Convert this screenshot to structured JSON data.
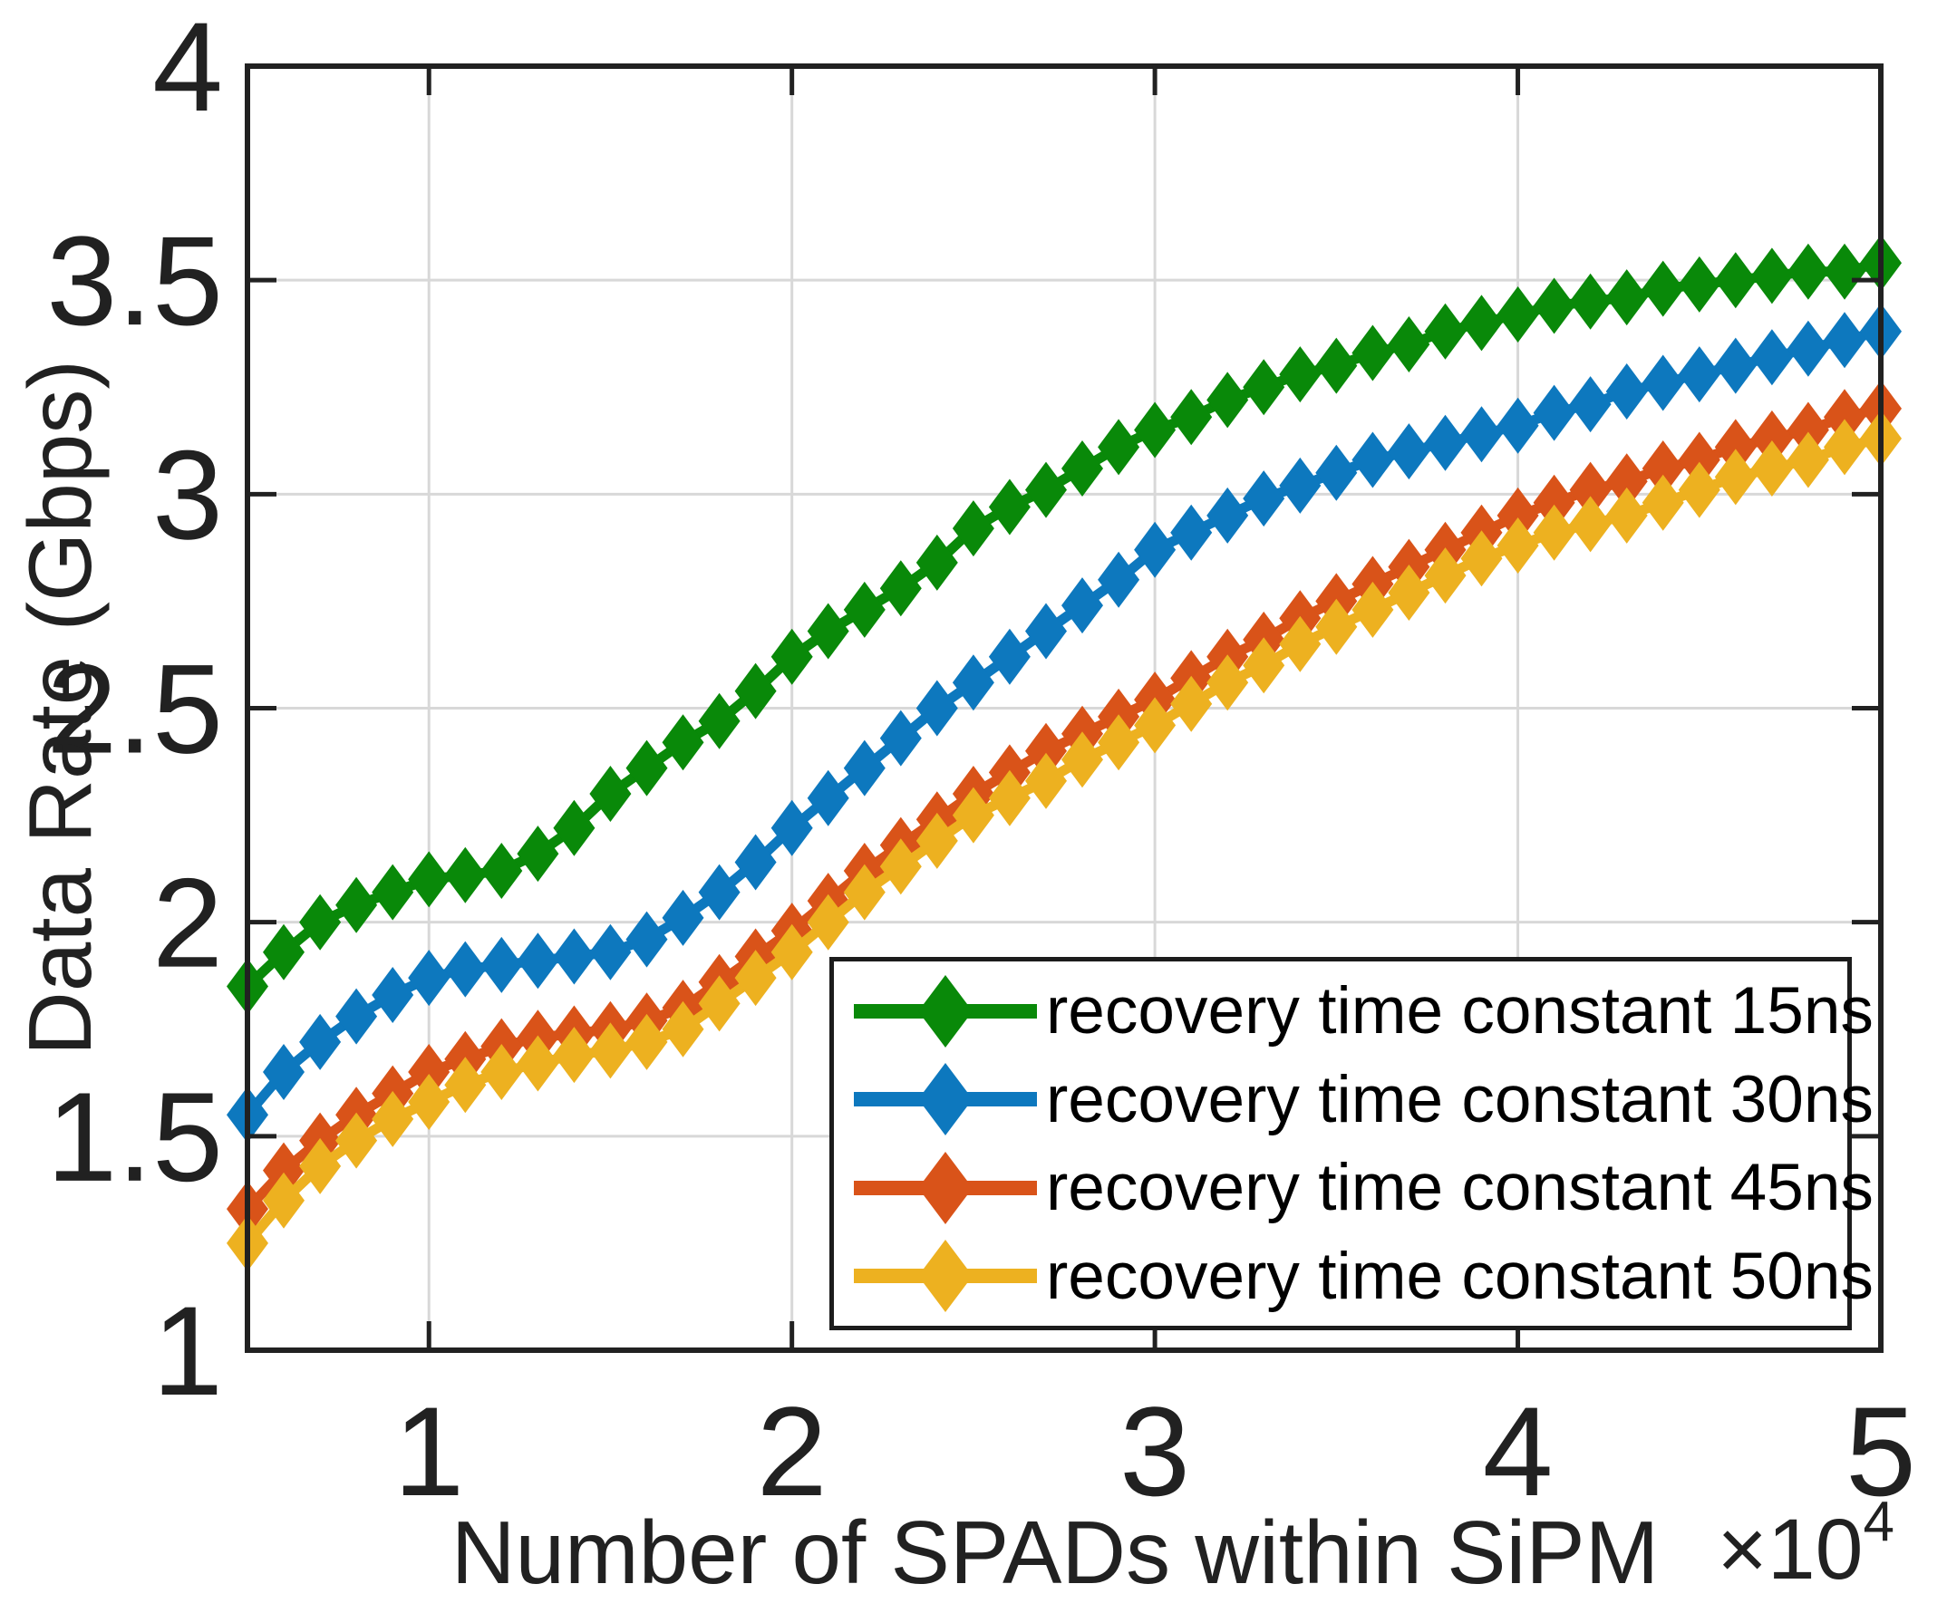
{
  "figure": {
    "background": "#ffffff",
    "axis_color": "#212121",
    "grid_color": "#d8d8d8",
    "text_color": "#212121"
  },
  "chart_data": {
    "type": "line",
    "title": "",
    "xlabel": "Number of SPADs within SiPM",
    "ylabel": "Data Rate (Gbps)",
    "x_axis_multiplier_base": "×10",
    "x_axis_multiplier_exponent": "4",
    "xlim": [
      5000,
      50000
    ],
    "ylim": [
      1,
      4
    ],
    "grid": true,
    "legend_position": "inside lower right",
    "x_ticks": {
      "values": [
        10000,
        20000,
        30000,
        40000,
        50000
      ],
      "labels": [
        "1",
        "2",
        "3",
        "4",
        "5"
      ]
    },
    "y_ticks": {
      "values": [
        1,
        1.5,
        2,
        2.5,
        3,
        3.5,
        4
      ],
      "labels": [
        "1",
        "1.5",
        "2",
        "2.5",
        "3",
        "3.5",
        "4"
      ]
    },
    "x": [
      5000,
      6000,
      7000,
      8000,
      9000,
      10000,
      11000,
      12000,
      13000,
      14000,
      15000,
      16000,
      17000,
      18000,
      19000,
      20000,
      21000,
      22000,
      23000,
      24000,
      25000,
      26000,
      27000,
      28000,
      29000,
      30000,
      31000,
      32000,
      33000,
      34000,
      35000,
      36000,
      37000,
      38000,
      39000,
      40000,
      41000,
      42000,
      43000,
      44000,
      45000,
      46000,
      47000,
      48000,
      49000,
      50000
    ],
    "series": [
      {
        "name": "recovery time constant 15ns",
        "color": "#098909",
        "marker": "diamond",
        "values": [
          1.85,
          1.93,
          2.0,
          2.04,
          2.07,
          2.1,
          2.11,
          2.12,
          2.16,
          2.22,
          2.3,
          2.36,
          2.42,
          2.47,
          2.54,
          2.62,
          2.68,
          2.73,
          2.78,
          2.84,
          2.92,
          2.97,
          3.01,
          3.06,
          3.11,
          3.15,
          3.18,
          3.22,
          3.25,
          3.28,
          3.3,
          3.33,
          3.35,
          3.38,
          3.4,
          3.42,
          3.44,
          3.45,
          3.46,
          3.48,
          3.49,
          3.5,
          3.51,
          3.52,
          3.52,
          3.54
        ]
      },
      {
        "name": "recovery time constant 30ns",
        "color": "#0d78be",
        "marker": "diamond",
        "values": [
          1.55,
          1.65,
          1.72,
          1.78,
          1.83,
          1.87,
          1.89,
          1.9,
          1.91,
          1.92,
          1.93,
          1.96,
          2.01,
          2.07,
          2.14,
          2.22,
          2.29,
          2.36,
          2.43,
          2.5,
          2.56,
          2.62,
          2.68,
          2.74,
          2.8,
          2.87,
          2.91,
          2.95,
          2.99,
          3.02,
          3.05,
          3.08,
          3.1,
          3.12,
          3.14,
          3.16,
          3.19,
          3.21,
          3.24,
          3.26,
          3.28,
          3.3,
          3.32,
          3.34,
          3.36,
          3.38
        ]
      },
      {
        "name": "recovery time constant 45ns",
        "color": "#d95319",
        "marker": "diamond",
        "values": [
          1.33,
          1.42,
          1.49,
          1.55,
          1.6,
          1.65,
          1.68,
          1.71,
          1.73,
          1.74,
          1.75,
          1.77,
          1.8,
          1.86,
          1.92,
          1.98,
          2.05,
          2.12,
          2.18,
          2.24,
          2.3,
          2.35,
          2.4,
          2.44,
          2.48,
          2.52,
          2.57,
          2.62,
          2.66,
          2.71,
          2.75,
          2.79,
          2.83,
          2.87,
          2.91,
          2.95,
          2.98,
          3.01,
          3.03,
          3.06,
          3.08,
          3.11,
          3.13,
          3.15,
          3.18,
          3.2
        ]
      },
      {
        "name": "recovery time constant 50ns",
        "color": "#edb120",
        "marker": "diamond",
        "values": [
          1.25,
          1.35,
          1.43,
          1.49,
          1.54,
          1.58,
          1.62,
          1.65,
          1.67,
          1.69,
          1.7,
          1.72,
          1.75,
          1.81,
          1.87,
          1.93,
          2.0,
          2.07,
          2.13,
          2.19,
          2.25,
          2.29,
          2.33,
          2.38,
          2.42,
          2.46,
          2.51,
          2.56,
          2.6,
          2.65,
          2.69,
          2.73,
          2.77,
          2.81,
          2.85,
          2.88,
          2.91,
          2.93,
          2.95,
          2.98,
          3.01,
          3.04,
          3.06,
          3.08,
          3.11,
          3.13
        ]
      }
    ]
  }
}
